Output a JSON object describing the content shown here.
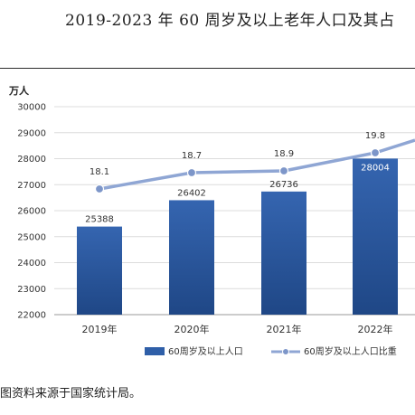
{
  "title": "2019-2023 年 60 周岁及以上老年人口及其占",
  "unit": "万人",
  "source": "图资料来源于国家统计局。",
  "chart_data": {
    "type": "bar",
    "categories": [
      "2019年",
      "2020年",
      "2021年",
      "2022年"
    ],
    "series": [
      {
        "name": "60周岁及以上人口",
        "type": "bar",
        "values": [
          25388,
          26402,
          26736,
          28004
        ],
        "color": "#2f5fa8"
      },
      {
        "name": "60周岁及以上人口比重",
        "type": "line",
        "values": [
          18.1,
          18.7,
          18.9,
          19.8
        ],
        "color": "#8fa6d4"
      }
    ],
    "y_ticks": [
      "30000",
      "29000",
      "28000",
      "27000",
      "26000",
      "25000",
      "24000",
      "23000",
      "22000"
    ],
    "ylim": [
      22000,
      30000
    ],
    "legend": "bottom",
    "grid": true
  }
}
